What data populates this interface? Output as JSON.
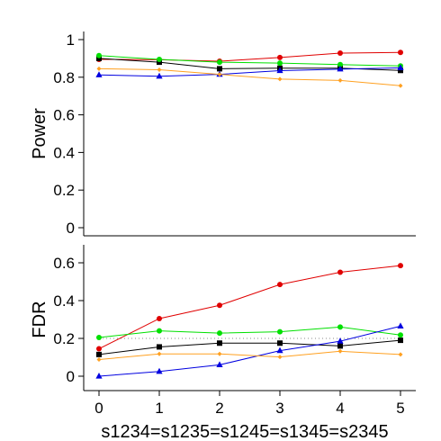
{
  "chart_data": [
    {
      "type": "line",
      "ylabel": "Power",
      "xlabel": "",
      "x": [
        0,
        1,
        2,
        3,
        4,
        5
      ],
      "xlim": [
        0,
        5
      ],
      "ylim": [
        0,
        1
      ],
      "yticks": [
        0,
        0.2,
        0.4,
        0.6,
        0.8,
        1
      ],
      "ytick_labels": [
        "0",
        "0.2",
        "0.4",
        "0.6",
        "0.8",
        "1"
      ],
      "grid": false,
      "series": [
        {
          "color": "#e00000",
          "marker": "circle",
          "values": [
            0.895,
            0.893,
            0.885,
            0.905,
            0.928,
            0.932
          ]
        },
        {
          "color": "#000000",
          "marker": "square",
          "values": [
            0.9,
            0.88,
            0.845,
            0.848,
            0.848,
            0.836
          ]
        },
        {
          "color": "#00e000",
          "marker": "circle",
          "values": [
            0.915,
            0.895,
            0.88,
            0.875,
            0.867,
            0.86
          ]
        },
        {
          "color": "#0000e0",
          "marker": "triangle",
          "values": [
            0.812,
            0.805,
            0.815,
            0.835,
            0.843,
            0.85
          ]
        },
        {
          "color": "#ffa020",
          "marker": "diamond",
          "values": [
            0.845,
            0.84,
            0.815,
            0.79,
            0.783,
            0.755
          ]
        }
      ]
    },
    {
      "type": "line",
      "ylabel": "FDR",
      "xlabel": "s1234=s1235=s1245=s1345=s2345",
      "x": [
        0,
        1,
        2,
        3,
        4,
        5
      ],
      "xticks": [
        0,
        1,
        2,
        3,
        4,
        5
      ],
      "xtick_labels": [
        "0",
        "1",
        "2",
        "3",
        "4",
        "5"
      ],
      "xlim": [
        0,
        5
      ],
      "ylim": [
        0,
        0.6
      ],
      "yticks": [
        0,
        0.2,
        0.4,
        0.6
      ],
      "ytick_labels": [
        "0",
        "0.2",
        "0.4",
        "0.6"
      ],
      "reference_line": 0.2,
      "grid": false,
      "series": [
        {
          "color": "#e00000",
          "marker": "circle",
          "values": [
            0.145,
            0.305,
            0.375,
            0.485,
            0.55,
            0.585
          ]
        },
        {
          "color": "#000000",
          "marker": "square",
          "values": [
            0.115,
            0.155,
            0.175,
            0.175,
            0.16,
            0.19
          ]
        },
        {
          "color": "#00e000",
          "marker": "circle",
          "values": [
            0.205,
            0.24,
            0.228,
            0.235,
            0.26,
            0.218
          ]
        },
        {
          "color": "#0000e0",
          "marker": "triangle",
          "values": [
            0.0,
            0.025,
            0.06,
            0.135,
            0.185,
            0.265
          ]
        },
        {
          "color": "#ffa020",
          "marker": "diamond",
          "values": [
            0.088,
            0.118,
            0.118,
            0.102,
            0.132,
            0.115
          ]
        }
      ]
    }
  ]
}
